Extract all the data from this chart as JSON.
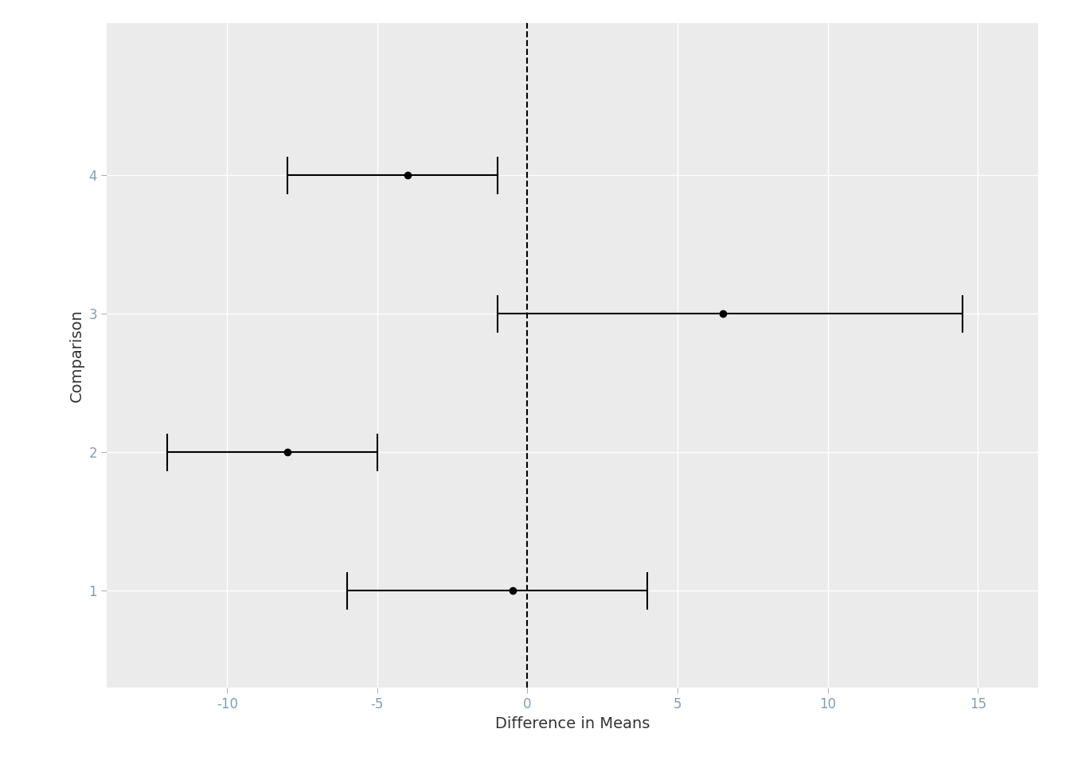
{
  "comparisons": [
    1,
    2,
    3,
    4
  ],
  "centers": [
    -0.5,
    -8.0,
    6.5,
    -4.0
  ],
  "ci_low": [
    -6.0,
    -12.0,
    -1.0,
    -8.0
  ],
  "ci_high": [
    4.0,
    -5.0,
    14.5,
    -1.0
  ],
  "xlabel": "Difference in Means",
  "ylabel": "Comparison",
  "xlim": [
    -14,
    17
  ],
  "xticks": [
    -10,
    -5,
    0,
    5,
    10,
    15
  ],
  "yticks": [
    1,
    2,
    3,
    4
  ],
  "plot_bg_color": "#EBEBEB",
  "fig_bg_color": "#FFFFFF",
  "grid_color": "#FFFFFF",
  "point_color": "black",
  "line_color": "black",
  "dashed_line_color": "black",
  "tick_label_color": "#7F9FB6",
  "axis_label_color": "#333333",
  "cap_size": 0.13,
  "point_size": 6,
  "line_width": 1.5,
  "xlabel_fontsize": 14,
  "ylabel_fontsize": 14,
  "tick_fontsize": 12,
  "ylim": [
    0.3,
    5.1
  ]
}
